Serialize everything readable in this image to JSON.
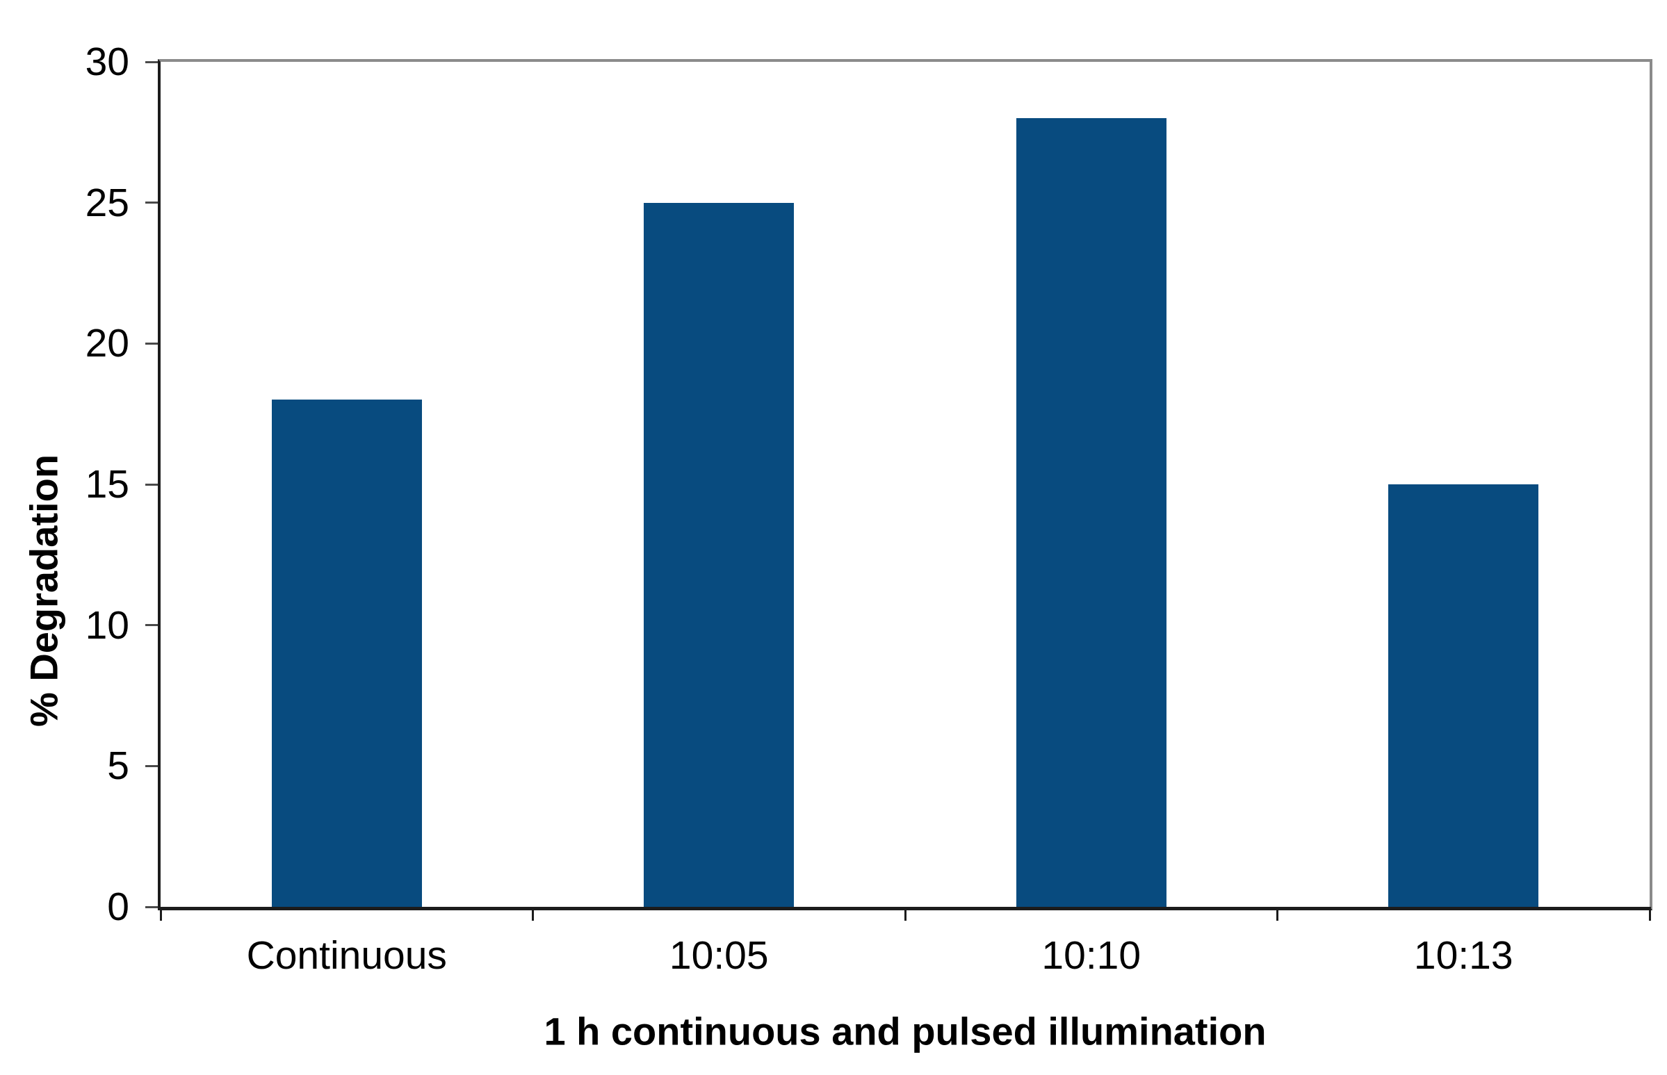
{
  "figure": {
    "background": "#ffffff"
  },
  "chart_data": {
    "type": "bar",
    "categories": [
      "Continuous",
      "10:05",
      "10:10",
      "10:13"
    ],
    "values": [
      18,
      25,
      28,
      15
    ],
    "title": "",
    "xlabel": "1 h continuous and pulsed illumination",
    "ylabel": "% Degradation",
    "ylim": [
      0,
      30
    ],
    "yticks": [
      0,
      5,
      10,
      15,
      20,
      25,
      30
    ],
    "grid": false,
    "legend": false,
    "bar_color": "#084b7f",
    "axis_color": "#1c1c1c",
    "plot_border_color": "#8b8b8b",
    "tick_color": "#4a4a4a",
    "text_color": "#000000"
  }
}
